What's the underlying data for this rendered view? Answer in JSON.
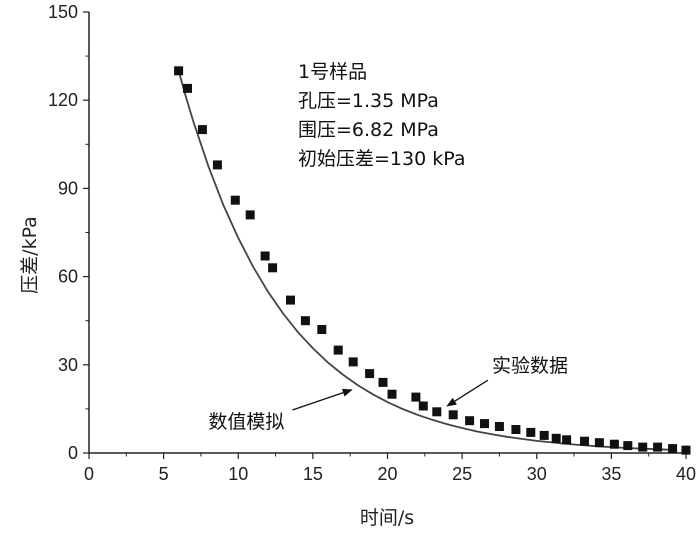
{
  "chart_data": {
    "type": "scatter",
    "xlabel": "时间/s",
    "ylabel": "压差/kPa",
    "xlim": [
      0,
      40
    ],
    "ylim": [
      0,
      150
    ],
    "xticks": [
      0,
      5,
      10,
      15,
      20,
      25,
      30,
      35,
      40
    ],
    "yticks": [
      0,
      30,
      60,
      90,
      120,
      150
    ],
    "grid": false,
    "info_box": [
      "1号样品",
      "孔压=1.35 MPa",
      "围压=6.82 MPa",
      "初始压差=130 kPa"
    ],
    "series": [
      {
        "name": "实验数据",
        "marker": "square",
        "color": "#111111",
        "x": [
          6.0,
          6.6,
          7.6,
          8.6,
          9.8,
          10.8,
          11.8,
          12.3,
          13.5,
          14.5,
          15.6,
          16.7,
          17.7,
          18.8,
          19.7,
          20.3,
          21.9,
          22.4,
          23.3,
          24.4,
          25.5,
          26.5,
          27.5,
          28.6,
          29.6,
          30.5,
          31.3,
          32.0,
          33.2,
          34.2,
          35.2,
          36.1,
          37.1,
          38.1,
          39.1,
          40.0
        ],
        "y": [
          130,
          124,
          110,
          98,
          86,
          81,
          67,
          63,
          52,
          45,
          42,
          35,
          31,
          27,
          24,
          20,
          19,
          16,
          14,
          13,
          11,
          10,
          9,
          8,
          7,
          6,
          5,
          4.5,
          4,
          3.5,
          3,
          2.5,
          2,
          2,
          1.5,
          1
        ]
      },
      {
        "name": "数值模拟",
        "type": "line",
        "color": "#444444",
        "x": [
          6,
          6.5,
          7,
          8,
          9,
          10,
          11,
          12,
          13,
          14,
          15,
          16,
          17,
          18,
          19,
          20,
          21,
          22,
          23,
          24,
          25,
          26,
          27,
          28,
          29,
          30,
          31,
          32,
          33,
          34,
          35,
          36,
          37,
          38,
          39
        ],
        "y": [
          130,
          121.0,
          112.6,
          97.5,
          84.4,
          73.1,
          63.3,
          54.8,
          47.5,
          41.1,
          35.6,
          30.8,
          26.7,
          23.1,
          20.0,
          17.3,
          15.0,
          13.0,
          11.3,
          9.8,
          8.5,
          7.3,
          6.4,
          5.5,
          4.8,
          4.1,
          3.6,
          3.1,
          2.7,
          2.3,
          2.0,
          1.7,
          1.5,
          1.3,
          1.1
        ]
      }
    ],
    "annotations": [
      {
        "text": "实验数据",
        "series": "实验数据",
        "label_at": {
          "x": 27.0,
          "y": 27.5
        },
        "arrow_to": {
          "x": 24.0,
          "y": 16.0
        }
      },
      {
        "text": "数值模拟",
        "series": "数值模拟",
        "label_at": {
          "x": 8.0,
          "y": 8.5
        },
        "arrow_to": {
          "x": 17.6,
          "y": 21.5
        }
      }
    ]
  }
}
